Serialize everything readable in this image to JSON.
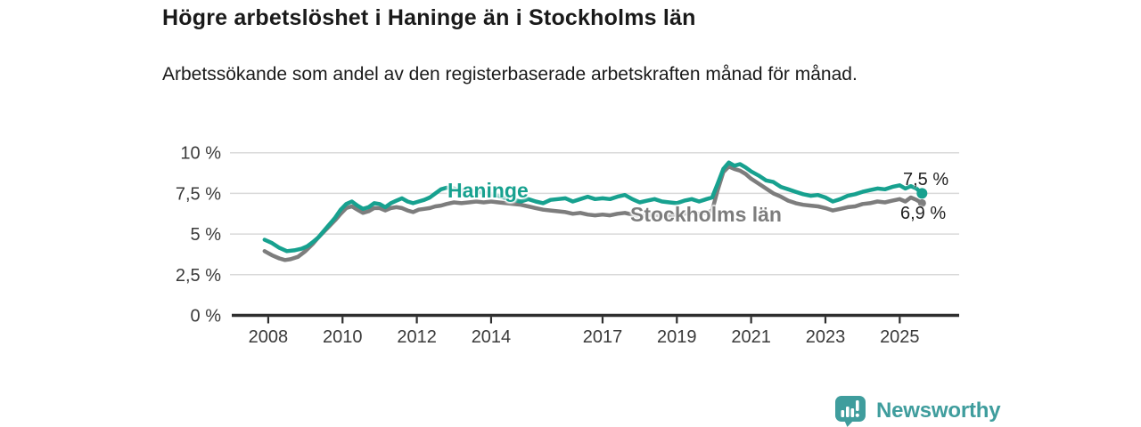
{
  "header": {
    "title": "Högre arbetslöshet i Haninge än i Stockholms län",
    "subtitle": "Arbetssökande som andel av den registerbaserade arbetskraften månad för månad."
  },
  "colors": {
    "accent_teal": "#17a18f",
    "line_gray": "#7d7d7d",
    "brand_teal": "#3f9d9d",
    "gridline": "#d9d9d9",
    "axis": "#2e2e2e",
    "tick_text": "#3a3a3a"
  },
  "chart_data": {
    "type": "line",
    "title": "Högre arbetslöshet i Haninge än i Stockholms län",
    "xlabel": "",
    "ylabel": "",
    "x_range": [
      2006.97,
      2026.6
    ],
    "y_range": [
      0,
      10
    ],
    "grid": "horizontal",
    "legend_position": "inline-labels",
    "y_ticks": [
      {
        "v": 0,
        "label": "0 %"
      },
      {
        "v": 2.5,
        "label": "2,5 %"
      },
      {
        "v": 5,
        "label": "5 %"
      },
      {
        "v": 7.5,
        "label": "7,5 %"
      },
      {
        "v": 10,
        "label": "10 %"
      }
    ],
    "x_ticks": [
      {
        "v": 2008,
        "label": "2008"
      },
      {
        "v": 2010,
        "label": "2010"
      },
      {
        "v": 2012,
        "label": "2012"
      },
      {
        "v": 2014,
        "label": "2014"
      },
      {
        "v": 2017,
        "label": "2017"
      },
      {
        "v": 2019,
        "label": "2019"
      },
      {
        "v": 2021,
        "label": "2021"
      },
      {
        "v": 2023,
        "label": "2023"
      },
      {
        "v": 2025,
        "label": "2025"
      }
    ],
    "series": [
      {
        "name": "Haninge",
        "color": "#17a18f",
        "end_label": "7,5 %",
        "end_value": 7.5,
        "points": [
          [
            2007.9,
            4.65
          ],
          [
            2008.1,
            4.45
          ],
          [
            2008.3,
            4.15
          ],
          [
            2008.5,
            3.95
          ],
          [
            2008.7,
            4.0
          ],
          [
            2008.9,
            4.1
          ],
          [
            2009.05,
            4.25
          ],
          [
            2009.2,
            4.5
          ],
          [
            2009.35,
            4.8
          ],
          [
            2009.5,
            5.2
          ],
          [
            2009.65,
            5.6
          ],
          [
            2009.8,
            6.0
          ],
          [
            2009.95,
            6.5
          ],
          [
            2010.1,
            6.85
          ],
          [
            2010.25,
            7.0
          ],
          [
            2010.4,
            6.75
          ],
          [
            2010.55,
            6.55
          ],
          [
            2010.7,
            6.65
          ],
          [
            2010.85,
            6.9
          ],
          [
            2011.0,
            6.85
          ],
          [
            2011.15,
            6.65
          ],
          [
            2011.3,
            6.9
          ],
          [
            2011.45,
            7.05
          ],
          [
            2011.6,
            7.2
          ],
          [
            2011.75,
            7.0
          ],
          [
            2011.9,
            6.9
          ],
          [
            2012.05,
            7.0
          ],
          [
            2012.2,
            7.1
          ],
          [
            2012.35,
            7.25
          ],
          [
            2012.5,
            7.5
          ],
          [
            2012.65,
            7.75
          ],
          [
            2012.8,
            7.85
          ],
          [
            2013.0,
            7.8
          ],
          [
            2013.2,
            7.7
          ],
          [
            2013.4,
            7.65
          ],
          [
            2013.6,
            7.6
          ],
          [
            2013.8,
            7.55
          ],
          [
            2014.0,
            7.45
          ],
          [
            2014.2,
            7.35
          ],
          [
            2014.4,
            7.2
          ],
          [
            2014.6,
            7.1
          ],
          [
            2014.8,
            7.0
          ],
          [
            2015.0,
            7.15
          ],
          [
            2015.2,
            7.0
          ],
          [
            2015.4,
            6.9
          ],
          [
            2015.6,
            7.1
          ],
          [
            2015.8,
            7.15
          ],
          [
            2016.0,
            7.2
          ],
          [
            2016.2,
            7.0
          ],
          [
            2016.4,
            7.15
          ],
          [
            2016.6,
            7.3
          ],
          [
            2016.8,
            7.15
          ],
          [
            2017.0,
            7.2
          ],
          [
            2017.2,
            7.15
          ],
          [
            2017.4,
            7.3
          ],
          [
            2017.6,
            7.4
          ],
          [
            2017.8,
            7.15
          ],
          [
            2018.0,
            6.95
          ],
          [
            2018.2,
            7.05
          ],
          [
            2018.4,
            7.15
          ],
          [
            2018.6,
            7.0
          ],
          [
            2018.8,
            6.95
          ],
          [
            2019.0,
            6.9
          ],
          [
            2019.2,
            7.05
          ],
          [
            2019.4,
            7.15
          ],
          [
            2019.6,
            7.0
          ],
          [
            2019.8,
            7.15
          ],
          [
            2019.95,
            7.25
          ],
          [
            2020.1,
            8.1
          ],
          [
            2020.25,
            9.0
          ],
          [
            2020.4,
            9.4
          ],
          [
            2020.55,
            9.2
          ],
          [
            2020.7,
            9.3
          ],
          [
            2020.85,
            9.1
          ],
          [
            2021.0,
            8.85
          ],
          [
            2021.2,
            8.6
          ],
          [
            2021.4,
            8.3
          ],
          [
            2021.6,
            8.2
          ],
          [
            2021.8,
            7.9
          ],
          [
            2022.0,
            7.75
          ],
          [
            2022.2,
            7.6
          ],
          [
            2022.4,
            7.45
          ],
          [
            2022.6,
            7.35
          ],
          [
            2022.8,
            7.4
          ],
          [
            2023.0,
            7.25
          ],
          [
            2023.2,
            7.0
          ],
          [
            2023.4,
            7.15
          ],
          [
            2023.6,
            7.35
          ],
          [
            2023.8,
            7.45
          ],
          [
            2024.0,
            7.6
          ],
          [
            2024.2,
            7.7
          ],
          [
            2024.4,
            7.8
          ],
          [
            2024.6,
            7.75
          ],
          [
            2024.8,
            7.9
          ],
          [
            2025.0,
            8.0
          ],
          [
            2025.15,
            7.8
          ],
          [
            2025.3,
            7.95
          ],
          [
            2025.45,
            7.8
          ],
          [
            2025.6,
            7.5
          ]
        ]
      },
      {
        "name": "Stockholms län",
        "color": "#7d7d7d",
        "end_label": "6,9 %",
        "end_value": 6.9,
        "points": [
          [
            2007.9,
            3.95
          ],
          [
            2008.1,
            3.7
          ],
          [
            2008.3,
            3.5
          ],
          [
            2008.45,
            3.4
          ],
          [
            2008.6,
            3.45
          ],
          [
            2008.8,
            3.6
          ],
          [
            2009.0,
            3.95
          ],
          [
            2009.2,
            4.4
          ],
          [
            2009.35,
            4.8
          ],
          [
            2009.5,
            5.15
          ],
          [
            2009.65,
            5.5
          ],
          [
            2009.8,
            5.85
          ],
          [
            2009.95,
            6.25
          ],
          [
            2010.1,
            6.6
          ],
          [
            2010.25,
            6.7
          ],
          [
            2010.4,
            6.5
          ],
          [
            2010.55,
            6.3
          ],
          [
            2010.7,
            6.4
          ],
          [
            2010.85,
            6.6
          ],
          [
            2011.0,
            6.6
          ],
          [
            2011.15,
            6.45
          ],
          [
            2011.3,
            6.6
          ],
          [
            2011.45,
            6.65
          ],
          [
            2011.6,
            6.6
          ],
          [
            2011.75,
            6.45
          ],
          [
            2011.9,
            6.35
          ],
          [
            2012.05,
            6.5
          ],
          [
            2012.2,
            6.55
          ],
          [
            2012.35,
            6.6
          ],
          [
            2012.5,
            6.7
          ],
          [
            2012.65,
            6.75
          ],
          [
            2012.8,
            6.85
          ],
          [
            2013.0,
            6.95
          ],
          [
            2013.2,
            6.9
          ],
          [
            2013.4,
            6.95
          ],
          [
            2013.6,
            7.0
          ],
          [
            2013.8,
            6.95
          ],
          [
            2014.0,
            7.0
          ],
          [
            2014.2,
            6.95
          ],
          [
            2014.4,
            6.9
          ],
          [
            2014.6,
            6.85
          ],
          [
            2014.8,
            6.8
          ],
          [
            2015.0,
            6.7
          ],
          [
            2015.2,
            6.6
          ],
          [
            2015.4,
            6.5
          ],
          [
            2015.6,
            6.45
          ],
          [
            2015.8,
            6.4
          ],
          [
            2016.0,
            6.35
          ],
          [
            2016.2,
            6.25
          ],
          [
            2016.4,
            6.3
          ],
          [
            2016.6,
            6.2
          ],
          [
            2016.8,
            6.15
          ],
          [
            2017.0,
            6.2
          ],
          [
            2017.2,
            6.15
          ],
          [
            2017.4,
            6.25
          ],
          [
            2017.6,
            6.3
          ],
          [
            2017.8,
            6.2
          ],
          [
            2018.0,
            6.1
          ],
          [
            2018.2,
            6.15
          ],
          [
            2018.4,
            6.2
          ],
          [
            2018.6,
            6.1
          ],
          [
            2018.8,
            6.15
          ],
          [
            2019.0,
            6.2
          ],
          [
            2019.2,
            6.25
          ],
          [
            2019.4,
            6.3
          ],
          [
            2019.6,
            6.25
          ],
          [
            2019.8,
            6.3
          ],
          [
            2019.95,
            6.45
          ],
          [
            2020.1,
            7.7
          ],
          [
            2020.25,
            8.8
          ],
          [
            2020.4,
            9.15
          ],
          [
            2020.55,
            9.0
          ],
          [
            2020.7,
            8.9
          ],
          [
            2020.85,
            8.7
          ],
          [
            2021.0,
            8.4
          ],
          [
            2021.2,
            8.1
          ],
          [
            2021.4,
            7.8
          ],
          [
            2021.6,
            7.5
          ],
          [
            2021.8,
            7.3
          ],
          [
            2022.0,
            7.05
          ],
          [
            2022.2,
            6.9
          ],
          [
            2022.4,
            6.8
          ],
          [
            2022.6,
            6.75
          ],
          [
            2022.8,
            6.7
          ],
          [
            2023.0,
            6.6
          ],
          [
            2023.2,
            6.45
          ],
          [
            2023.4,
            6.55
          ],
          [
            2023.6,
            6.65
          ],
          [
            2023.8,
            6.7
          ],
          [
            2024.0,
            6.85
          ],
          [
            2024.2,
            6.9
          ],
          [
            2024.4,
            7.0
          ],
          [
            2024.6,
            6.95
          ],
          [
            2024.8,
            7.05
          ],
          [
            2025.0,
            7.15
          ],
          [
            2025.15,
            7.0
          ],
          [
            2025.3,
            7.25
          ],
          [
            2025.45,
            7.1
          ],
          [
            2025.6,
            6.9
          ]
        ]
      }
    ]
  },
  "footer": {
    "brand": "Newsworthy",
    "logo_icon": "bar-chart-speech-bubble"
  }
}
